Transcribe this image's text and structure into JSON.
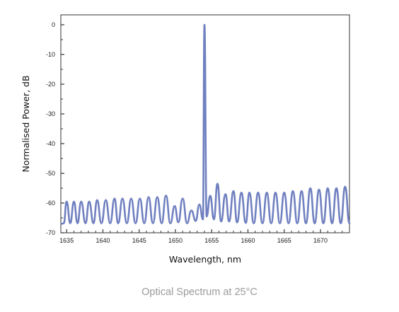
{
  "caption": "Optical Spectrum at 25°C",
  "chart_data": {
    "type": "line",
    "title": "",
    "xlabel": "Wavelength, nm",
    "ylabel": "Normalised Power, dB",
    "xlim": [
      1634.2,
      1674
    ],
    "ylim": [
      -70,
      0
    ],
    "xticks": [
      1635,
      1640,
      1645,
      1650,
      1655,
      1660,
      1665,
      1670
    ],
    "yticks": [
      0,
      -10,
      -20,
      -30,
      -40,
      -50,
      -60,
      -70
    ],
    "grid": false,
    "legend": "none",
    "line_color": "#7080c0",
    "series": [
      {
        "x": [
          1634.3,
          1634.6,
          1635.0,
          1635.5,
          1636.0,
          1636.5,
          1637.0,
          1637.6,
          1638.1,
          1638.7,
          1639.2,
          1639.8,
          1640.4,
          1641.0,
          1641.6,
          1642.1,
          1642.7,
          1643.3,
          1643.9,
          1644.5,
          1645.1,
          1645.7,
          1646.3,
          1646.9,
          1647.5,
          1648.1,
          1648.7,
          1649.3,
          1649.9,
          1650.4,
          1651.0,
          1651.6,
          1652.2,
          1652.8,
          1653.3,
          1653.8,
          1654.0,
          1654.3,
          1654.8,
          1655.3,
          1655.8,
          1656.3,
          1656.9,
          1657.4,
          1658.0,
          1658.5,
          1659.1,
          1659.7,
          1660.2,
          1660.8,
          1661.4,
          1662.0,
          1662.6,
          1663.2,
          1663.8,
          1664.4,
          1665.0,
          1665.6,
          1666.2,
          1666.8,
          1667.4,
          1668.0,
          1668.6,
          1669.2,
          1669.8,
          1670.4,
          1671.0,
          1671.6,
          1672.2,
          1672.8,
          1673.4,
          1674.0
        ],
        "y": [
          -67,
          -66.8,
          -59.5,
          -66.8,
          -59.5,
          -66.8,
          -59.5,
          -66.8,
          -59.5,
          -66.8,
          -59,
          -66.8,
          -59,
          -66.8,
          -58.5,
          -66.8,
          -58.5,
          -66.8,
          -58.5,
          -66.8,
          -58.5,
          -66.8,
          -58,
          -66.8,
          -58,
          -66.8,
          -57.5,
          -66.8,
          -61,
          -66.5,
          -58.5,
          -66.8,
          -62.5,
          -66,
          -60.5,
          -65.5,
          0,
          -64.5,
          -57.5,
          -65.5,
          -53.5,
          -66.2,
          -57,
          -66.2,
          -56,
          -66.5,
          -56.5,
          -66.7,
          -56.5,
          -66.8,
          -56.5,
          -66.8,
          -56.5,
          -66.8,
          -56.5,
          -66.8,
          -56.5,
          -66.8,
          -56,
          -66.8,
          -56,
          -66.8,
          -55,
          -66.8,
          -55.5,
          -66.8,
          -55,
          -66.8,
          -55,
          -66.8,
          -54.5,
          -66.8
        ]
      }
    ]
  }
}
